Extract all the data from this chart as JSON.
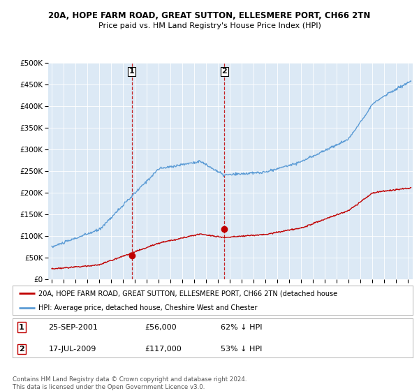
{
  "title1": "20A, HOPE FARM ROAD, GREAT SUTTON, ELLESMERE PORT, CH66 2TN",
  "title2": "Price paid vs. HM Land Registry's House Price Index (HPI)",
  "bg_color": "#dce9f5",
  "hpi_color": "#5b9bd5",
  "price_color": "#c00000",
  "vline_color": "#c00000",
  "transaction1_year": 2001.73,
  "transaction1_price": 56000,
  "transaction2_year": 2009.54,
  "transaction2_price": 117000,
  "legend_price_label": "20A, HOPE FARM ROAD, GREAT SUTTON, ELLESMERE PORT, CH66 2TN (detached house",
  "legend_hpi_label": "HPI: Average price, detached house, Cheshire West and Chester",
  "annotation1": "25-SEP-2001",
  "annotation1_price": "£56,000",
  "annotation1_pct": "62% ↓ HPI",
  "annotation2": "17-JUL-2009",
  "annotation2_price": "£117,000",
  "annotation2_pct": "53% ↓ HPI",
  "footer": "Contains HM Land Registry data © Crown copyright and database right 2024.\nThis data is licensed under the Open Government Licence v3.0.",
  "ylim_max": 500000,
  "xlim_start": 1994.7,
  "xlim_end": 2025.4
}
